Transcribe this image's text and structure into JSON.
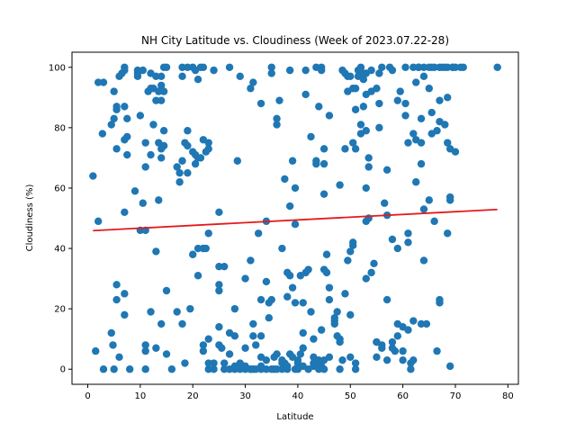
{
  "chart_data": {
    "type": "scatter",
    "title": "NH City Latitude vs. Cloudiness (Week of 2023.07.22-28)",
    "xlabel": "Latitude",
    "ylabel": "Cloudiness (%)",
    "xlim": [
      -3,
      82
    ],
    "ylim": [
      -5,
      105
    ],
    "xticks": [
      0,
      10,
      20,
      30,
      40,
      50,
      60,
      70,
      80
    ],
    "yticks": [
      0,
      20,
      40,
      60,
      80,
      100
    ],
    "grid": false,
    "legend": "none",
    "colors": {
      "points": "#1f77b4",
      "regression": "#e41a1c"
    },
    "regression": {
      "x": [
        1,
        78
      ],
      "y": [
        45.9,
        52.9
      ]
    },
    "points": [
      [
        1,
        64
      ],
      [
        1.5,
        6
      ],
      [
        2,
        95
      ],
      [
        2,
        49
      ],
      [
        3,
        95
      ],
      [
        2.8,
        78
      ],
      [
        3,
        0
      ],
      [
        4.5,
        12
      ],
      [
        4.8,
        8
      ],
      [
        5,
        0
      ],
      [
        4.5,
        81
      ],
      [
        5,
        83
      ],
      [
        5,
        92
      ],
      [
        5.5,
        87
      ],
      [
        5.5,
        86
      ],
      [
        5.5,
        73
      ],
      [
        5.5,
        28
      ],
      [
        5.5,
        23
      ],
      [
        6,
        4
      ],
      [
        6,
        97
      ],
      [
        6.5,
        98
      ],
      [
        7,
        100
      ],
      [
        7,
        99
      ],
      [
        7,
        76
      ],
      [
        7,
        87
      ],
      [
        7,
        52
      ],
      [
        7,
        25
      ],
      [
        7,
        18
      ],
      [
        7.5,
        83
      ],
      [
        7.5,
        77
      ],
      [
        7.5,
        71
      ],
      [
        8,
        0
      ],
      [
        9,
        59
      ],
      [
        9.5,
        98
      ],
      [
        9.5,
        99
      ],
      [
        9.5,
        97
      ],
      [
        10,
        84
      ],
      [
        10,
        46
      ],
      [
        10.5,
        55
      ],
      [
        10.5,
        99
      ],
      [
        11,
        75
      ],
      [
        11,
        67
      ],
      [
        11,
        46
      ],
      [
        11,
        8
      ],
      [
        11,
        6
      ],
      [
        11,
        0
      ],
      [
        11.5,
        92
      ],
      [
        12,
        98
      ],
      [
        12,
        19
      ],
      [
        12,
        93
      ],
      [
        12,
        71
      ],
      [
        12.5,
        93
      ],
      [
        12.5,
        81
      ],
      [
        13,
        97
      ],
      [
        13,
        89
      ],
      [
        13,
        39
      ],
      [
        13,
        7
      ],
      [
        13.5,
        56
      ],
      [
        13.5,
        92
      ],
      [
        13.5,
        75
      ],
      [
        14,
        73
      ],
      [
        14,
        70
      ],
      [
        14,
        15
      ],
      [
        14,
        94
      ],
      [
        14,
        89
      ],
      [
        14,
        97
      ],
      [
        14.5,
        100
      ],
      [
        14.5,
        92
      ],
      [
        14.5,
        74
      ],
      [
        14.5,
        79
      ],
      [
        15,
        100
      ],
      [
        15,
        26
      ],
      [
        15,
        5
      ],
      [
        16,
        0
      ],
      [
        17,
        19
      ],
      [
        17,
        67
      ],
      [
        17.5,
        62
      ],
      [
        17.5,
        65
      ],
      [
        18,
        15
      ],
      [
        18,
        100
      ],
      [
        18,
        97
      ],
      [
        18,
        69
      ],
      [
        18.5,
        75
      ],
      [
        18.5,
        2
      ],
      [
        19,
        79
      ],
      [
        19,
        65
      ],
      [
        19,
        74
      ],
      [
        19,
        100
      ],
      [
        19.5,
        20
      ],
      [
        20,
        38
      ],
      [
        20,
        72
      ],
      [
        20,
        100
      ],
      [
        20.5,
        99
      ],
      [
        20.5,
        68
      ],
      [
        20.5,
        71
      ],
      [
        21,
        40
      ],
      [
        21,
        31
      ],
      [
        21,
        70
      ],
      [
        21,
        96
      ],
      [
        21.5,
        100
      ],
      [
        21.5,
        70
      ],
      [
        22,
        100
      ],
      [
        22,
        76
      ],
      [
        22,
        40
      ],
      [
        22,
        8
      ],
      [
        22,
        6
      ],
      [
        22,
        40
      ],
      [
        22.5,
        40
      ],
      [
        22.5,
        72
      ],
      [
        23,
        75
      ],
      [
        23,
        10
      ],
      [
        23,
        73
      ],
      [
        23,
        0
      ],
      [
        23,
        45
      ],
      [
        23,
        2
      ],
      [
        24,
        0
      ],
      [
        24,
        2
      ],
      [
        24,
        99
      ],
      [
        25,
        52
      ],
      [
        25,
        26
      ],
      [
        25,
        28
      ],
      [
        25,
        34
      ],
      [
        25,
        14
      ],
      [
        25,
        8
      ],
      [
        25.5,
        7
      ],
      [
        26,
        2
      ],
      [
        26,
        0
      ],
      [
        26,
        34
      ],
      [
        27,
        100
      ],
      [
        27,
        12
      ],
      [
        27,
        5
      ],
      [
        27,
        0
      ],
      [
        28,
        11
      ],
      [
        28,
        20
      ],
      [
        28,
        1
      ],
      [
        28,
        0
      ],
      [
        28.5,
        69
      ],
      [
        29,
        97
      ],
      [
        29,
        2
      ],
      [
        29,
        0
      ],
      [
        30,
        7
      ],
      [
        30,
        30
      ],
      [
        30,
        0
      ],
      [
        30,
        1
      ],
      [
        31,
        93
      ],
      [
        31,
        36
      ],
      [
        31,
        0
      ],
      [
        31,
        0
      ],
      [
        31.5,
        95
      ],
      [
        31.5,
        0
      ],
      [
        31.5,
        15
      ],
      [
        31.5,
        11
      ],
      [
        32,
        8
      ],
      [
        32,
        0
      ],
      [
        32.5,
        45
      ],
      [
        33,
        88
      ],
      [
        33,
        0
      ],
      [
        33,
        11
      ],
      [
        33,
        1
      ],
      [
        33,
        4
      ],
      [
        33,
        23
      ],
      [
        34,
        0
      ],
      [
        34,
        29
      ],
      [
        34,
        49
      ],
      [
        34,
        3
      ],
      [
        34.5,
        22
      ],
      [
        34.5,
        17
      ],
      [
        35,
        98
      ],
      [
        35,
        100
      ],
      [
        35,
        23
      ],
      [
        35,
        0
      ],
      [
        35.5,
        0
      ],
      [
        35.5,
        4
      ],
      [
        36,
        81
      ],
      [
        36,
        83
      ],
      [
        36,
        0
      ],
      [
        36,
        5
      ],
      [
        36.5,
        89
      ],
      [
        37,
        40
      ],
      [
        37,
        3
      ],
      [
        37,
        0
      ],
      [
        37,
        2
      ],
      [
        37.5,
        63
      ],
      [
        37.5,
        2
      ],
      [
        38,
        32
      ],
      [
        38,
        24
      ],
      [
        38,
        0
      ],
      [
        38,
        1
      ],
      [
        38.5,
        54
      ],
      [
        38.5,
        99
      ],
      [
        38.5,
        5
      ],
      [
        38.5,
        31
      ],
      [
        39,
        69
      ],
      [
        39,
        27
      ],
      [
        39,
        4
      ],
      [
        39.5,
        48
      ],
      [
        39.5,
        22
      ],
      [
        39.5,
        60
      ],
      [
        39.5,
        0
      ],
      [
        40,
        3
      ],
      [
        40,
        0
      ],
      [
        40,
        2
      ],
      [
        40.5,
        31
      ],
      [
        40.5,
        5
      ],
      [
        41,
        7
      ],
      [
        41,
        22
      ],
      [
        41,
        12
      ],
      [
        41,
        1
      ],
      [
        41.5,
        91
      ],
      [
        41.5,
        32
      ],
      [
        41.5,
        99
      ],
      [
        42,
        0
      ],
      [
        42,
        33
      ],
      [
        42.5,
        77
      ],
      [
        42.5,
        19
      ],
      [
        43,
        4
      ],
      [
        43,
        1
      ],
      [
        43,
        2
      ],
      [
        43,
        10
      ],
      [
        43.5,
        69
      ],
      [
        43.5,
        68
      ],
      [
        43.5,
        100
      ],
      [
        44,
        87
      ],
      [
        44,
        1
      ],
      [
        44,
        3
      ],
      [
        44,
        0
      ],
      [
        44.5,
        13
      ],
      [
        44.5,
        99
      ],
      [
        44.5,
        100
      ],
      [
        44.5,
        1
      ],
      [
        45,
        68
      ],
      [
        45,
        73
      ],
      [
        45,
        58
      ],
      [
        45,
        33
      ],
      [
        45,
        3
      ],
      [
        45,
        0
      ],
      [
        45.5,
        38
      ],
      [
        45.5,
        32
      ],
      [
        46,
        84
      ],
      [
        46,
        27
      ],
      [
        46,
        23
      ],
      [
        46,
        4
      ],
      [
        47,
        15
      ],
      [
        47,
        16
      ],
      [
        47,
        17
      ],
      [
        47.5,
        19
      ],
      [
        47.5,
        11
      ],
      [
        48,
        0
      ],
      [
        48,
        61
      ],
      [
        48,
        10
      ],
      [
        48,
        9
      ],
      [
        48.5,
        3
      ],
      [
        48.5,
        99
      ],
      [
        49,
        73
      ],
      [
        49,
        98
      ],
      [
        49,
        25
      ],
      [
        49.5,
        92
      ],
      [
        49.5,
        97
      ],
      [
        49.5,
        36
      ],
      [
        50,
        97
      ],
      [
        50,
        39
      ],
      [
        50,
        18
      ],
      [
        50,
        4
      ],
      [
        50.5,
        41
      ],
      [
        50.5,
        93
      ],
      [
        50.5,
        75
      ],
      [
        50.5,
        42
      ],
      [
        51,
        0
      ],
      [
        51,
        93
      ],
      [
        51,
        73
      ],
      [
        51,
        86
      ],
      [
        51,
        2
      ],
      [
        51.5,
        99
      ],
      [
        51.5,
        97
      ],
      [
        52,
        100
      ],
      [
        52,
        81
      ],
      [
        52,
        78
      ],
      [
        52.5,
        98
      ],
      [
        52.5,
        96
      ],
      [
        52.5,
        87
      ],
      [
        53,
        60
      ],
      [
        53,
        30
      ],
      [
        53,
        49
      ],
      [
        53,
        79
      ],
      [
        53,
        98
      ],
      [
        53,
        91
      ],
      [
        53.5,
        67
      ],
      [
        53.5,
        70
      ],
      [
        53.5,
        50
      ],
      [
        54,
        92
      ],
      [
        54,
        99
      ],
      [
        54,
        32
      ],
      [
        54.5,
        35
      ],
      [
        55,
        4
      ],
      [
        55,
        9
      ],
      [
        55,
        9
      ],
      [
        55,
        93
      ],
      [
        55.5,
        88
      ],
      [
        55.5,
        80
      ],
      [
        55.5,
        98
      ],
      [
        56,
        100
      ],
      [
        56,
        8
      ],
      [
        56,
        7
      ],
      [
        56.5,
        55
      ],
      [
        57,
        51
      ],
      [
        57,
        66
      ],
      [
        57,
        23
      ],
      [
        57,
        3
      ],
      [
        57.5,
        100
      ],
      [
        58,
        9
      ],
      [
        58,
        43
      ],
      [
        58,
        99
      ],
      [
        58,
        7
      ],
      [
        58.5,
        6
      ],
      [
        59,
        40
      ],
      [
        59,
        89
      ],
      [
        59,
        11
      ],
      [
        59,
        15
      ],
      [
        59.5,
        92
      ],
      [
        60,
        14
      ],
      [
        60,
        6
      ],
      [
        60,
        3
      ],
      [
        60.5,
        100
      ],
      [
        60.5,
        88
      ],
      [
        60.5,
        84
      ],
      [
        61,
        45
      ],
      [
        61,
        42
      ],
      [
        61,
        75
      ],
      [
        61,
        13
      ],
      [
        61.5,
        2
      ],
      [
        61.5,
        0
      ],
      [
        62,
        16
      ],
      [
        62,
        78
      ],
      [
        62,
        100
      ],
      [
        62,
        3
      ],
      [
        62.5,
        62
      ],
      [
        62.5,
        95
      ],
      [
        62.5,
        76
      ],
      [
        63,
        100
      ],
      [
        63,
        100
      ],
      [
        63,
        100
      ],
      [
        63.5,
        75
      ],
      [
        63.5,
        83
      ],
      [
        63.5,
        15
      ],
      [
        63.5,
        68
      ],
      [
        64,
        97
      ],
      [
        64,
        53
      ],
      [
        64,
        100
      ],
      [
        64,
        36
      ],
      [
        64.5,
        15
      ],
      [
        65,
        56
      ],
      [
        65,
        100
      ],
      [
        65,
        93
      ],
      [
        65.5,
        85
      ],
      [
        65.5,
        78
      ],
      [
        65.5,
        100
      ],
      [
        66,
        49
      ],
      [
        66,
        100
      ],
      [
        66.5,
        6
      ],
      [
        66.5,
        79
      ],
      [
        67,
        89
      ],
      [
        67,
        82
      ],
      [
        67,
        22
      ],
      [
        67,
        23
      ],
      [
        67,
        100
      ],
      [
        67.5,
        100
      ],
      [
        68,
        100
      ],
      [
        68,
        81
      ],
      [
        68.5,
        45
      ],
      [
        68.5,
        100
      ],
      [
        68.5,
        90
      ],
      [
        68.5,
        75
      ],
      [
        69,
        1
      ],
      [
        69,
        56
      ],
      [
        69,
        57
      ],
      [
        69,
        73
      ],
      [
        69.5,
        100
      ],
      [
        69.5,
        100
      ],
      [
        70,
        72
      ],
      [
        70,
        100
      ],
      [
        71,
        100
      ],
      [
        71.5,
        100
      ],
      [
        78,
        100
      ]
    ]
  }
}
